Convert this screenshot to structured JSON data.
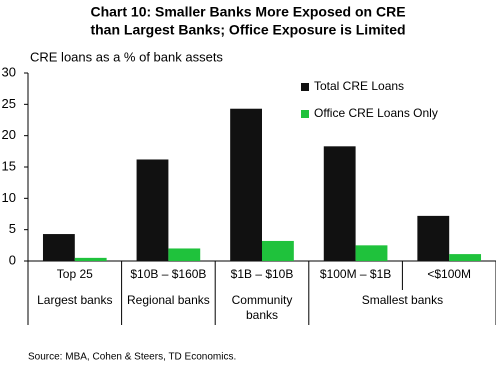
{
  "chart_data": {
    "type": "bar",
    "title": [
      "Chart 10: Smaller Banks More Exposed on CRE",
      "than Largest Banks; Office Exposure is Limited"
    ],
    "y_label": "CRE loans as a % of bank assets",
    "categories": [
      "Top 25",
      "$10B – $160B",
      "$1B – $10B",
      "$100M – $1B",
      "<$100M"
    ],
    "groups": [
      {
        "label": "Largest banks",
        "span": 1
      },
      {
        "label": "Regional banks",
        "span": 1
      },
      {
        "label": "Community banks",
        "span": 1
      },
      {
        "label": "Smallest banks",
        "span": 2
      }
    ],
    "series": [
      {
        "name": "Total CRE Loans",
        "color": "#111111",
        "values": [
          4.3,
          16.2,
          24.3,
          18.3,
          7.2
        ]
      },
      {
        "name": "Office CRE Loans Only",
        "color": "#1fc23c",
        "values": [
          0.5,
          2.0,
          3.2,
          2.5,
          1.1
        ]
      }
    ],
    "ylim": [
      0,
      30
    ],
    "yticks": [
      0,
      5,
      10,
      15,
      20,
      25,
      30
    ],
    "grid": false,
    "legend": "top-right",
    "source": "Source: MBA, Cohen & Steers, TD Economics."
  }
}
